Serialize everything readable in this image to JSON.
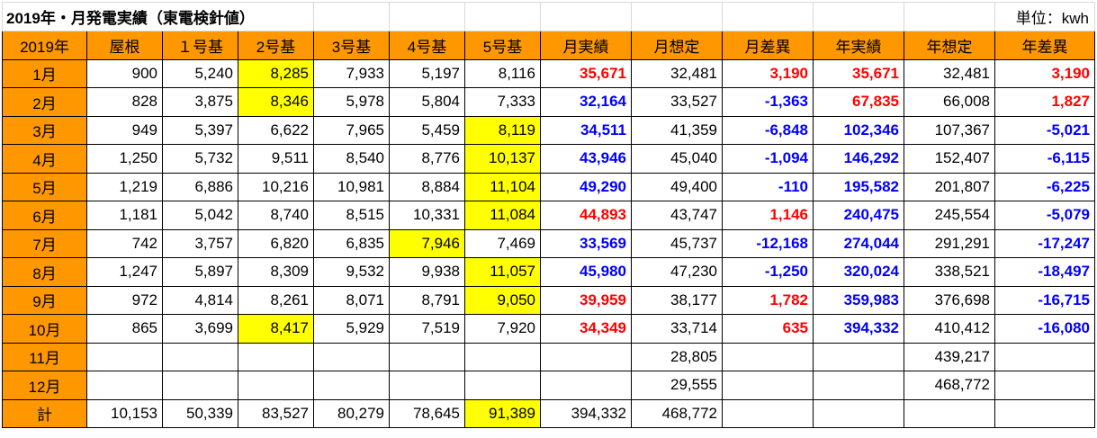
{
  "title": "2019年・月発電実績（東電検針値）",
  "unit": "単位：kwh",
  "headers": [
    "2019年",
    "屋根",
    "１号基",
    "2号基",
    "3号基",
    "4号基",
    "5号基",
    "月実績",
    "月想定",
    "月差異",
    "年実績",
    "年想定",
    "年差異"
  ],
  "rows": [
    {
      "month": "1月",
      "cells": [
        "900",
        "5,240",
        "8,285",
        "7,933",
        "5,197",
        "8,116",
        "35,671",
        "32,481",
        "3,190",
        "35,671",
        "32,481",
        "3,190"
      ]
    },
    {
      "month": "2月",
      "cells": [
        "828",
        "3,875",
        "8,346",
        "5,978",
        "5,804",
        "7,333",
        "32,164",
        "33,527",
        "-1,363",
        "67,835",
        "66,008",
        "1,827"
      ]
    },
    {
      "month": "3月",
      "cells": [
        "949",
        "5,397",
        "6,622",
        "7,965",
        "5,459",
        "8,119",
        "34,511",
        "41,359",
        "-6,848",
        "102,346",
        "107,367",
        "-5,021"
      ]
    },
    {
      "month": "4月",
      "cells": [
        "1,250",
        "5,732",
        "9,511",
        "8,540",
        "8,776",
        "10,137",
        "43,946",
        "45,040",
        "-1,094",
        "146,292",
        "152,407",
        "-6,115"
      ]
    },
    {
      "month": "5月",
      "cells": [
        "1,219",
        "6,886",
        "10,216",
        "10,981",
        "8,884",
        "11,104",
        "49,290",
        "49,400",
        "-110",
        "195,582",
        "201,807",
        "-6,225"
      ]
    },
    {
      "month": "6月",
      "cells": [
        "1,181",
        "5,042",
        "8,740",
        "8,515",
        "10,331",
        "11,084",
        "44,893",
        "43,747",
        "1,146",
        "240,475",
        "245,554",
        "-5,079"
      ]
    },
    {
      "month": "7月",
      "cells": [
        "742",
        "3,757",
        "6,820",
        "6,835",
        "7,946",
        "7,469",
        "33,569",
        "45,737",
        "-12,168",
        "274,044",
        "291,291",
        "-17,247"
      ]
    },
    {
      "month": "8月",
      "cells": [
        "1,247",
        "5,897",
        "8,309",
        "9,532",
        "9,938",
        "11,057",
        "45,980",
        "47,230",
        "-1,250",
        "320,024",
        "338,521",
        "-18,497"
      ]
    },
    {
      "month": "9月",
      "cells": [
        "972",
        "4,814",
        "8,261",
        "8,071",
        "8,791",
        "9,050",
        "39,959",
        "38,177",
        "1,782",
        "359,983",
        "376,698",
        "-16,715"
      ]
    },
    {
      "month": "10月",
      "cells": [
        "865",
        "3,699",
        "8,417",
        "5,929",
        "7,519",
        "7,920",
        "34,349",
        "33,714",
        "635",
        "394,332",
        "410,412",
        "-16,080"
      ]
    },
    {
      "month": "11月",
      "cells": [
        "",
        "",
        "",
        "",
        "",
        "",
        "",
        "28,805",
        "",
        "",
        "439,217",
        ""
      ]
    },
    {
      "month": "12月",
      "cells": [
        "",
        "",
        "",
        "",
        "",
        "",
        "",
        "29,555",
        "",
        "",
        "468,772",
        ""
      ]
    },
    {
      "month": "計",
      "cells": [
        "10,153",
        "50,339",
        "83,527",
        "80,279",
        "78,645",
        "91,389",
        "394,332",
        "468,772",
        "",
        "",
        "",
        ""
      ]
    }
  ],
  "highlight_color": "#ffff00",
  "header_color": "#ff9800",
  "positive_color": "#ff0000",
  "negative_color": "#0000ff"
}
